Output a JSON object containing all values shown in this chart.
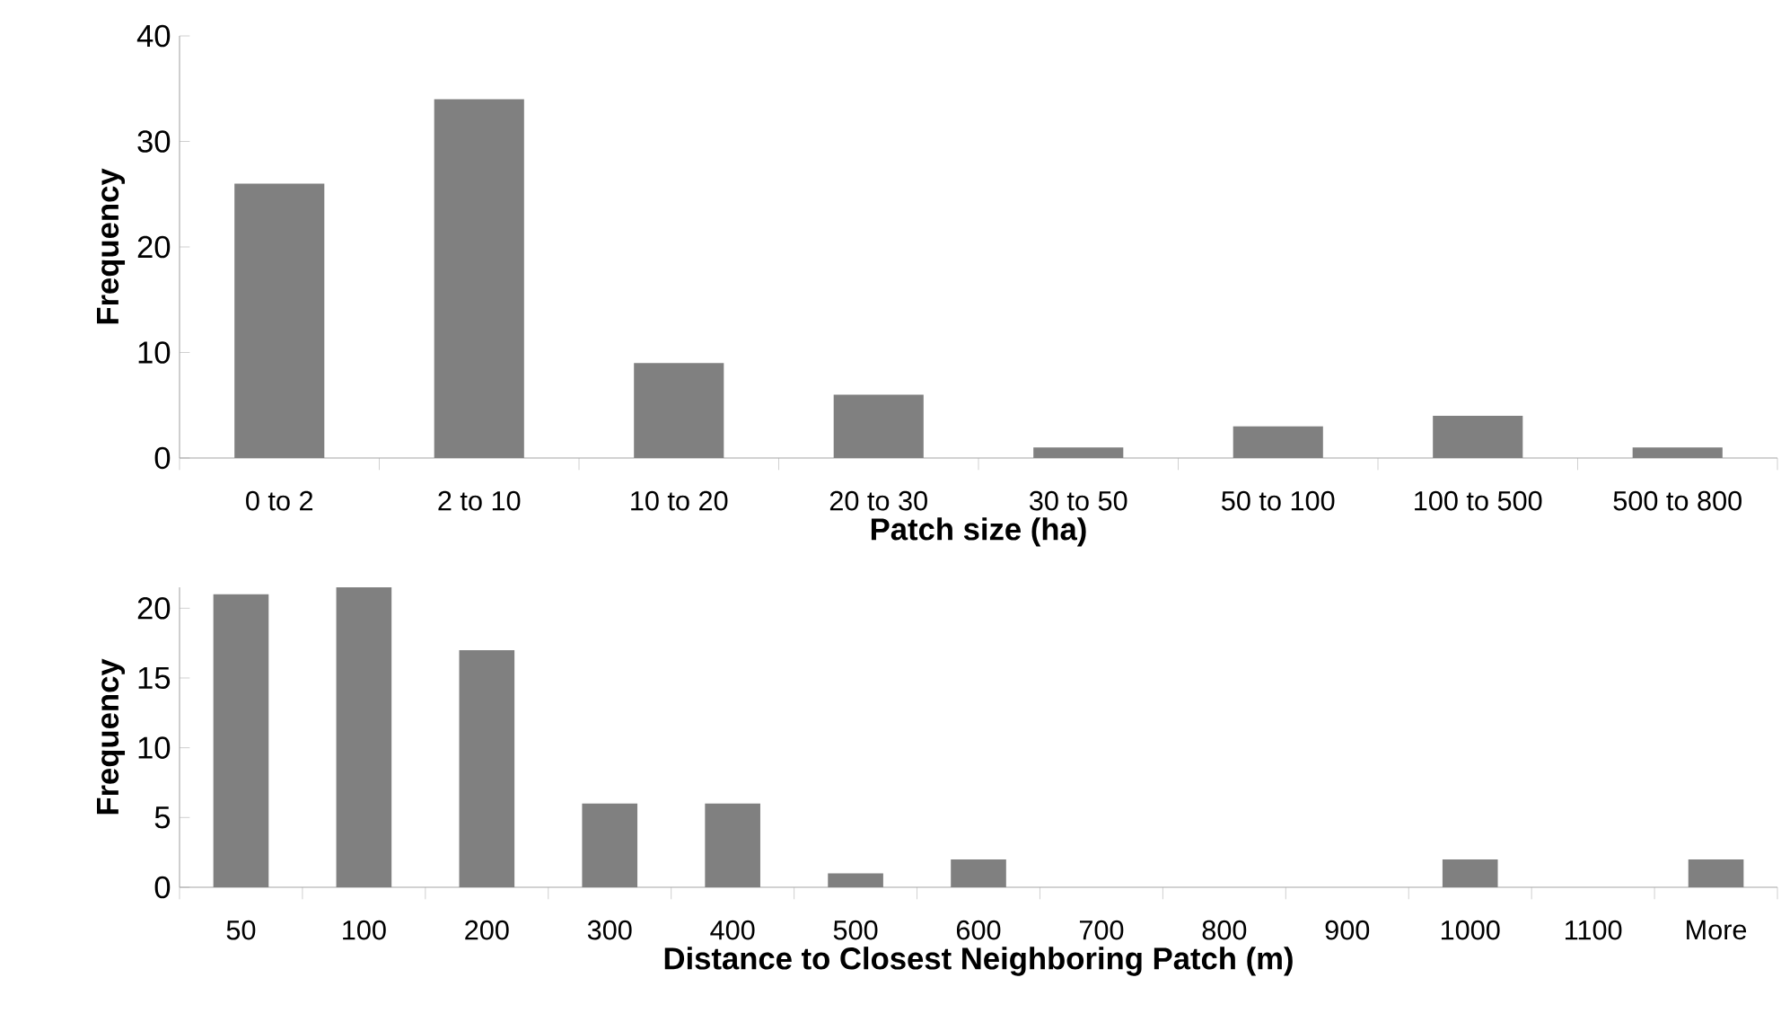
{
  "chart_data": [
    {
      "type": "bar",
      "xlabel": "Patch size (ha)",
      "ylabel": "Frequency",
      "categories": [
        "0 to 2",
        "2 to 10",
        "10 to 20",
        "20 to 30",
        "30 to 50",
        "50 to 100",
        "100 to 500",
        "500 to 800"
      ],
      "values": [
        26,
        34,
        9,
        6,
        1,
        3,
        4,
        1
      ],
      "color": "#808080",
      "ylim": [
        0,
        40
      ],
      "yticks": [
        0,
        10,
        20,
        30,
        40
      ],
      "grid": false
    },
    {
      "type": "bar",
      "xlabel": "Distance to Closest Neighboring Patch (m)",
      "ylabel": "Frequency",
      "categories": [
        "50",
        "100",
        "200",
        "300",
        "400",
        "500",
        "600",
        "700",
        "800",
        "900",
        "1000",
        "1100",
        "More"
      ],
      "values": [
        21,
        21.5,
        17,
        6,
        6,
        1,
        2,
        0,
        0,
        0,
        2,
        0,
        2
      ],
      "color": "#808080",
      "ylim": [
        0,
        21.5
      ],
      "yticks": [
        0,
        5,
        10,
        15,
        20
      ],
      "grid": false
    }
  ]
}
